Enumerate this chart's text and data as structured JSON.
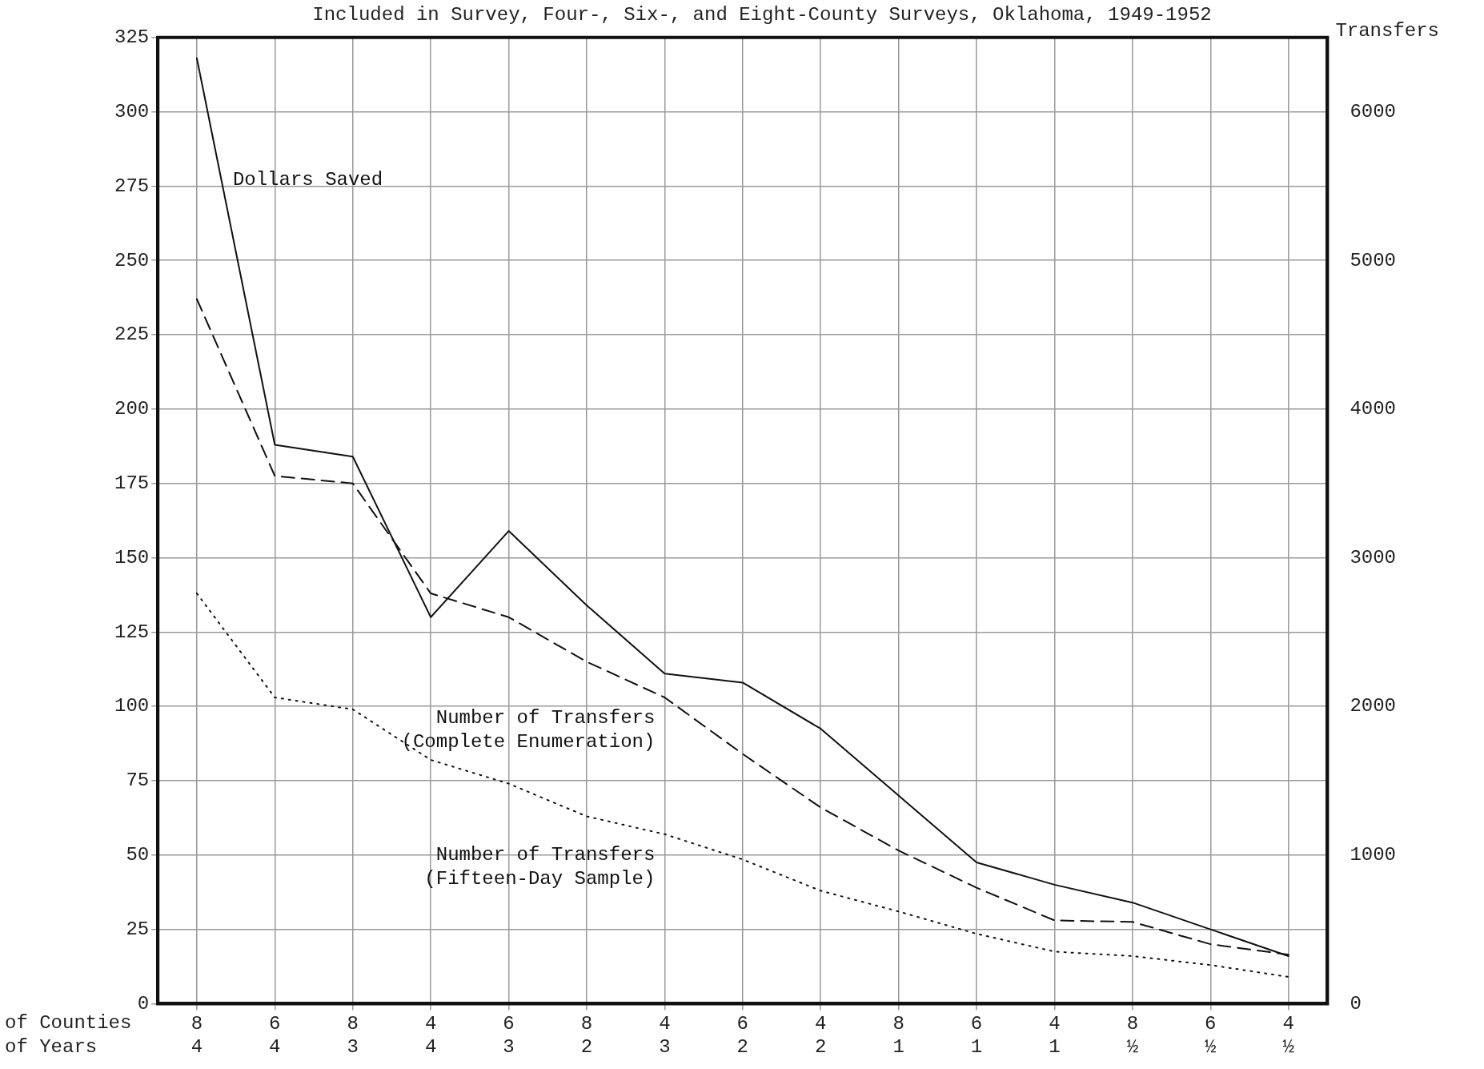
{
  "chart_data": {
    "type": "line",
    "title": "Included in Survey, Four-, Six-, and Eight-County Surveys, Oklahoma, 1949-1952",
    "y2label": "Transfers",
    "categories": [
      "8\n4",
      "6\n4",
      "8\n3",
      "4\n4",
      "6\n3",
      "8\n2",
      "4\n3",
      "6\n2",
      "4\n2",
      "8\n1",
      "6\n1",
      "4\n1",
      "8\n½",
      "6\n½",
      "4\n½"
    ],
    "series": [
      {
        "name": "Dollars Saved",
        "color": "#111111",
        "line_style": "solid",
        "values": [
          318,
          188,
          184,
          130,
          159,
          134,
          111,
          108,
          92.5,
          70,
          47.5,
          40,
          34,
          25,
          16
        ]
      },
      {
        "name": "Number of Transfers (Complete Enumeration)",
        "color": "#111111",
        "line_style": "dashed",
        "axis": "y2",
        "values": [
          4740,
          3550,
          3500,
          2760,
          2600,
          2300,
          2060,
          1680,
          1320,
          1030,
          780,
          560,
          550,
          400,
          330
        ]
      },
      {
        "name": "Number of Transfers (Fifteen-Day Sample)",
        "color": "#111111",
        "line_style": "dotted",
        "axis": "y2",
        "values": [
          2760,
          2060,
          1980,
          1640,
          1480,
          1260,
          1140,
          970,
          760,
          620,
          470,
          350,
          320,
          260,
          180
        ]
      }
    ],
    "ylim": [
      0,
      325
    ],
    "yticks": [
      0,
      25,
      50,
      75,
      100,
      125,
      150,
      175,
      200,
      225,
      250,
      275,
      300,
      325
    ],
    "y2lim": [
      0,
      6500
    ],
    "y2ticks": [
      0,
      1000,
      2000,
      3000,
      4000,
      5000,
      6000
    ],
    "annotations": [
      "of Counties",
      "of Years"
    ],
    "grid": true,
    "legend": false,
    "marker": "none"
  }
}
